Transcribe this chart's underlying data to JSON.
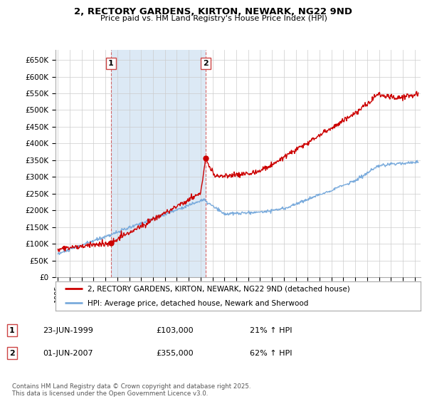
{
  "title_line1": "2, RECTORY GARDENS, KIRTON, NEWARK, NG22 9ND",
  "title_line2": "Price paid vs. HM Land Registry's House Price Index (HPI)",
  "ylim": [
    0,
    680000
  ],
  "yticks": [
    0,
    50000,
    100000,
    150000,
    200000,
    250000,
    300000,
    350000,
    400000,
    450000,
    500000,
    550000,
    600000,
    650000
  ],
  "ytick_labels": [
    "£0",
    "£50K",
    "£100K",
    "£150K",
    "£200K",
    "£250K",
    "£300K",
    "£350K",
    "£400K",
    "£450K",
    "£500K",
    "£550K",
    "£600K",
    "£650K"
  ],
  "sale1_date": 1999.47,
  "sale1_price": 103000,
  "sale1_label": "1",
  "sale1_text": "23-JUN-1999",
  "sale1_amount": "£103,000",
  "sale1_hpi": "21% ↑ HPI",
  "sale2_date": 2007.42,
  "sale2_price": 355000,
  "sale2_label": "2",
  "sale2_text": "01-JUN-2007",
  "sale2_amount": "£355,000",
  "sale2_hpi": "62% ↑ HPI",
  "line_color_red": "#cc0000",
  "line_color_blue": "#7aabdc",
  "shade_color": "#dce9f5",
  "grid_color": "#cccccc",
  "background_color": "#ffffff",
  "legend_label_red": "2, RECTORY GARDENS, KIRTON, NEWARK, NG22 9ND (detached house)",
  "legend_label_blue": "HPI: Average price, detached house, Newark and Sherwood",
  "footer_text": "Contains HM Land Registry data © Crown copyright and database right 2025.\nThis data is licensed under the Open Government Licence v3.0.",
  "xmin": 1994.8,
  "xmax": 2025.5
}
